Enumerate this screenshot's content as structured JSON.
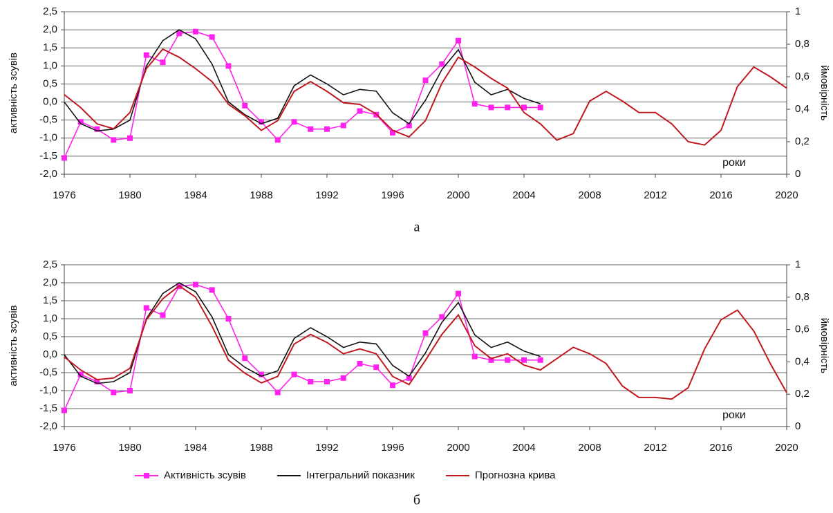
{
  "chart_data": [
    {
      "type": "line",
      "caption": "а",
      "y_label": "активність зсувів",
      "y2_label": "ймовірність",
      "annotation": "роки",
      "x": [
        1976,
        1977,
        1978,
        1979,
        1980,
        1981,
        1982,
        1983,
        1984,
        1985,
        1986,
        1987,
        1988,
        1989,
        1990,
        1991,
        1992,
        1993,
        1994,
        1995,
        1996,
        1997,
        1998,
        1999,
        2000,
        2001,
        2002,
        2003,
        2004,
        2005,
        2006,
        2007,
        2008,
        2009,
        2010,
        2011,
        2012,
        2013,
        2014,
        2015,
        2016,
        2017,
        2018,
        2019,
        2020
      ],
      "xlim": [
        1976,
        2020
      ],
      "xticks": [
        1976,
        1980,
        1984,
        1988,
        1992,
        1996,
        2000,
        2004,
        2008,
        2012,
        2016,
        2020
      ],
      "ylim": [
        -2,
        2.5
      ],
      "yticks": [
        {
          "value": -2,
          "label": "-2,0"
        },
        {
          "value": -1.5,
          "label": "-1,5"
        },
        {
          "value": -1,
          "label": "-1,0"
        },
        {
          "value": -0.5,
          "label": "-0,5"
        },
        {
          "value": 0,
          "label": "0,0"
        },
        {
          "value": 0.5,
          "label": "0,5"
        },
        {
          "value": 1,
          "label": "1,0"
        },
        {
          "value": 1.5,
          "label": "1,5"
        },
        {
          "value": 2,
          "label": "2,0"
        },
        {
          "value": 2.5,
          "label": "2,5"
        }
      ],
      "y2lim": [
        0,
        1
      ],
      "y2ticks": [
        0,
        {
          "value": 0.2,
          "label": "0,2"
        },
        {
          "value": 0.4,
          "label": "0,4"
        },
        {
          "value": 0.6,
          "label": "0,6"
        },
        {
          "value": 0.8,
          "label": "0,8"
        },
        1
      ],
      "grid": true,
      "legend": false,
      "series": [
        {
          "color": "#ff22ee",
          "marker": "square",
          "values": [
            -1.55,
            -0.55,
            -0.75,
            -1.05,
            -1.0,
            1.3,
            1.1,
            1.9,
            1.95,
            1.8,
            1.0,
            -0.1,
            -0.55,
            -1.05,
            -0.55,
            -0.75,
            -0.75,
            -0.65,
            -0.25,
            -0.35,
            -0.85,
            -0.65,
            0.6,
            1.05,
            1.7,
            -0.05,
            -0.15,
            -0.15,
            -0.15,
            -0.15,
            null,
            null,
            null,
            null,
            null,
            null,
            null,
            null,
            null,
            null,
            null,
            null,
            null,
            null,
            null
          ]
        },
        {
          "color": "#111111",
          "values": [
            0.0,
            -0.6,
            -0.8,
            -0.75,
            -0.5,
            1.0,
            1.7,
            2.0,
            1.75,
            1.05,
            0.0,
            -0.35,
            -0.6,
            -0.45,
            0.45,
            0.75,
            0.5,
            0.2,
            0.35,
            0.3,
            -0.3,
            -0.6,
            0.05,
            0.9,
            1.45,
            0.55,
            0.2,
            0.35,
            0.1,
            -0.05,
            null,
            null,
            null,
            null,
            null,
            null,
            null,
            null,
            null,
            null,
            null,
            null,
            null,
            null,
            null
          ]
        },
        {
          "color": "#c0191f",
          "axis": "y2",
          "values": [
            0.49,
            0.41,
            0.31,
            0.28,
            0.38,
            0.65,
            0.77,
            0.72,
            0.65,
            0.57,
            0.43,
            0.36,
            0.27,
            0.33,
            0.51,
            0.57,
            0.51,
            0.44,
            0.43,
            0.37,
            0.27,
            0.23,
            0.33,
            0.56,
            0.72,
            0.66,
            0.59,
            0.53,
            0.38,
            0.31,
            0.21,
            0.25,
            0.45,
            0.51,
            0.45,
            0.38,
            0.38,
            0.31,
            0.2,
            0.18,
            0.27,
            0.54,
            0.66,
            0.6,
            0.53
          ]
        }
      ]
    },
    {
      "type": "line",
      "caption": "б",
      "y_label": "активність зсувів",
      "y2_label": "ймовірність",
      "annotation": "роки",
      "x": [
        1976,
        1977,
        1978,
        1979,
        1980,
        1981,
        1982,
        1983,
        1984,
        1985,
        1986,
        1987,
        1988,
        1989,
        1990,
        1991,
        1992,
        1993,
        1994,
        1995,
        1996,
        1997,
        1998,
        1999,
        2000,
        2001,
        2002,
        2003,
        2004,
        2005,
        2006,
        2007,
        2008,
        2009,
        2010,
        2011,
        2012,
        2013,
        2014,
        2015,
        2016,
        2017,
        2018,
        2019,
        2020
      ],
      "xlim": [
        1976,
        2020
      ],
      "xticks": [
        1976,
        1980,
        1984,
        1988,
        1992,
        1996,
        2000,
        2004,
        2008,
        2012,
        2016,
        2020
      ],
      "ylim": [
        -2,
        2.5
      ],
      "yticks": [
        {
          "value": -2,
          "label": "-2,0"
        },
        {
          "value": -1.5,
          "label": "-1,5"
        },
        {
          "value": -1,
          "label": "-1,0"
        },
        {
          "value": -0.5,
          "label": "-0,5"
        },
        {
          "value": 0,
          "label": "0,0"
        },
        {
          "value": 0.5,
          "label": "0,5"
        },
        {
          "value": 1,
          "label": "1,0"
        },
        {
          "value": 1.5,
          "label": "1,5"
        },
        {
          "value": 2,
          "label": "2,0"
        },
        {
          "value": 2.5,
          "label": "2,5"
        }
      ],
      "y2lim": [
        0,
        1
      ],
      "y2ticks": [
        0,
        {
          "value": 0.2,
          "label": "0,2"
        },
        {
          "value": 0.4,
          "label": "0,4"
        },
        {
          "value": 0.6,
          "label": "0,6"
        },
        {
          "value": 0.8,
          "label": "0,8"
        },
        1
      ],
      "grid": true,
      "legend": "bottom",
      "series": [
        {
          "name": "Активність зсувів",
          "color": "#ff22ee",
          "marker": "square",
          "values": [
            -1.55,
            -0.55,
            -0.75,
            -1.05,
            -1.0,
            1.3,
            1.1,
            1.9,
            1.95,
            1.8,
            1.0,
            -0.1,
            -0.55,
            -1.05,
            -0.55,
            -0.75,
            -0.75,
            -0.65,
            -0.25,
            -0.35,
            -0.85,
            -0.65,
            0.6,
            1.05,
            1.7,
            -0.05,
            -0.15,
            -0.15,
            -0.15,
            -0.15,
            null,
            null,
            null,
            null,
            null,
            null,
            null,
            null,
            null,
            null,
            null,
            null,
            null,
            null,
            null
          ]
        },
        {
          "name": "Інтегральний показник",
          "color": "#111111",
          "values": [
            0.0,
            -0.6,
            -0.8,
            -0.75,
            -0.5,
            1.0,
            1.7,
            2.0,
            1.75,
            1.05,
            0.0,
            -0.35,
            -0.6,
            -0.45,
            0.45,
            0.75,
            0.5,
            0.2,
            0.35,
            0.3,
            -0.3,
            -0.6,
            0.05,
            0.9,
            1.45,
            0.55,
            0.2,
            0.35,
            0.1,
            -0.05,
            null,
            null,
            null,
            null,
            null,
            null,
            null,
            null,
            null,
            null,
            null,
            null,
            null,
            null,
            null
          ]
        },
        {
          "name": "Прогнозна крива",
          "color": "#c0191f",
          "axis": "y2",
          "values": [
            0.43,
            0.35,
            0.29,
            0.3,
            0.36,
            0.66,
            0.79,
            0.87,
            0.8,
            0.62,
            0.41,
            0.33,
            0.27,
            0.31,
            0.51,
            0.57,
            0.52,
            0.45,
            0.48,
            0.45,
            0.31,
            0.26,
            0.41,
            0.57,
            0.69,
            0.5,
            0.42,
            0.45,
            0.38,
            0.35,
            0.42,
            0.49,
            0.45,
            0.39,
            0.25,
            0.18,
            0.18,
            0.17,
            0.24,
            0.48,
            0.66,
            0.72,
            0.59,
            0.39,
            0.21
          ]
        }
      ]
    }
  ]
}
